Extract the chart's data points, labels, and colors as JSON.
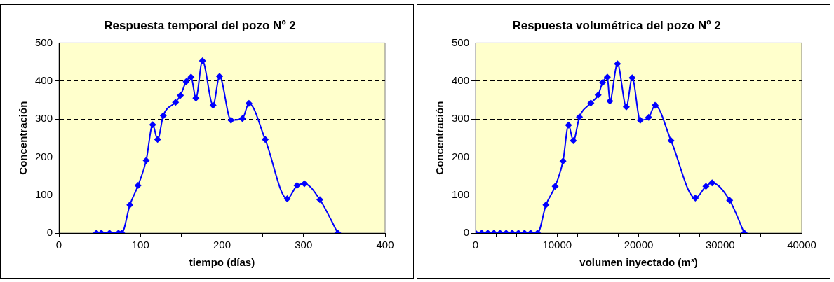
{
  "chart_data": [
    {
      "type": "line",
      "title": "Respuesta temporal del pozo Nº 2",
      "xlabel": "tiempo (días)",
      "ylabel": "Concentración",
      "series": [
        {
          "color": "#0000ff",
          "x": [
            46,
            52,
            62,
            73,
            77,
            87,
            97,
            107,
            115,
            121,
            128,
            143,
            149,
            156,
            162,
            168,
            176,
            189,
            197,
            211,
            225,
            233,
            253,
            280,
            292,
            301,
            320,
            342
          ],
          "values": [
            0,
            0,
            0,
            0,
            0,
            74,
            125,
            191,
            285,
            246,
            309,
            344,
            362,
            398,
            410,
            355,
            453,
            336,
            412,
            297,
            301,
            341,
            246,
            90,
            125,
            130,
            88,
            0
          ]
        }
      ],
      "xlim": [
        0,
        400
      ],
      "xticks": [
        0,
        {
          "value": 50,
          "label": null
        },
        100,
        {
          "value": 150,
          "label": null
        },
        200,
        {
          "value": 250,
          "label": null
        },
        300,
        {
          "value": 350,
          "label": null
        },
        400
      ],
      "ylim": [
        0,
        500
      ],
      "yticks": [
        0,
        100,
        200,
        300,
        400,
        500
      ],
      "grid": "y",
      "legend": false,
      "marker": "diamond",
      "line_style": "solid"
    },
    {
      "type": "line",
      "title": "Respuesta volumétrica del pozo Nº 2",
      "xlabel": "volumen inyectado (m³)",
      "ylabel": "Concentración",
      "series": [
        {
          "color": "#0000ff",
          "x": [
            0,
            750,
            1500,
            2250,
            3000,
            3750,
            4500,
            5250,
            6000,
            6750,
            7600,
            8630,
            9760,
            10720,
            11400,
            11990,
            12740,
            14140,
            15030,
            15580,
            16160,
            16470,
            17400,
            18490,
            19210,
            20200,
            21230,
            22020,
            23970,
            26950,
            28250,
            29010,
            31160,
            32950
          ],
          "values": [
            0,
            0,
            0,
            0,
            0,
            0,
            0,
            0,
            0,
            0,
            0,
            74,
            123,
            189,
            284,
            243,
            305,
            342,
            363,
            396,
            410,
            347,
            445,
            332,
            408,
            297,
            304,
            336,
            243,
            92,
            123,
            132,
            86,
            0
          ]
        }
      ],
      "xlim": [
        0,
        40000
      ],
      "xticks": [
        0,
        {
          "value": 2500,
          "label": null
        },
        {
          "value": 5000,
          "label": null
        },
        {
          "value": 7500,
          "label": null
        },
        10000,
        {
          "value": 12500,
          "label": null
        },
        {
          "value": 15000,
          "label": null
        },
        {
          "value": 17500,
          "label": null
        },
        20000,
        {
          "value": 22500,
          "label": null
        },
        {
          "value": 25000,
          "label": null
        },
        {
          "value": 27500,
          "label": null
        },
        30000,
        {
          "value": 32500,
          "label": null
        },
        {
          "value": 35000,
          "label": null
        },
        {
          "value": 37500,
          "label": null
        },
        40000
      ],
      "ylim": [
        0,
        500
      ],
      "yticks": [
        0,
        100,
        200,
        300,
        400,
        500
      ],
      "grid": "y",
      "legend": false,
      "marker": "diamond",
      "line_style": "solid"
    }
  ]
}
